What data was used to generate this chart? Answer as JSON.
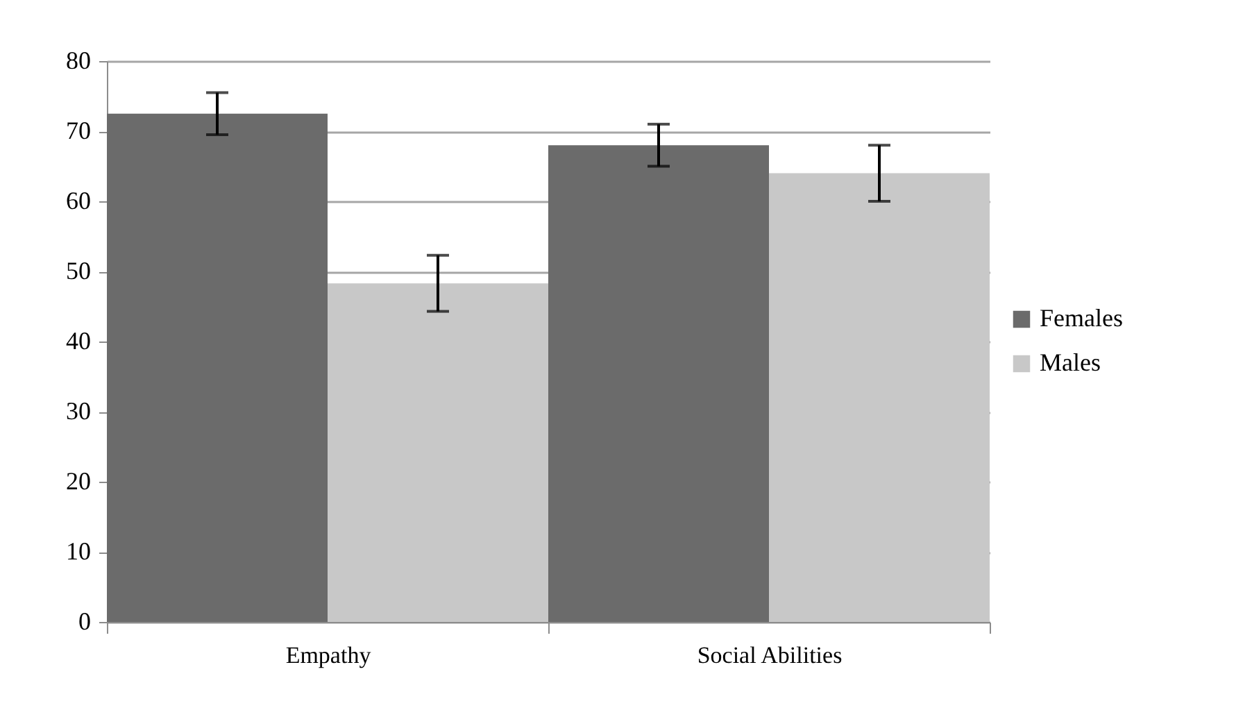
{
  "chart_data": {
    "type": "bar",
    "categories": [
      "Empathy",
      "Social Abilities"
    ],
    "series": [
      {
        "name": "Females",
        "color": "#6b6b6b",
        "values": [
          72.5,
          68
        ],
        "errors": [
          3,
          3
        ]
      },
      {
        "name": "Males",
        "color": "#c8c8c8",
        "values": [
          48.3,
          64
        ],
        "errors": [
          4,
          4
        ]
      }
    ],
    "ylim": [
      0,
      80
    ],
    "yticks": [
      0,
      10,
      20,
      30,
      40,
      50,
      60,
      70,
      80
    ],
    "grid": "y",
    "legend": "right"
  }
}
